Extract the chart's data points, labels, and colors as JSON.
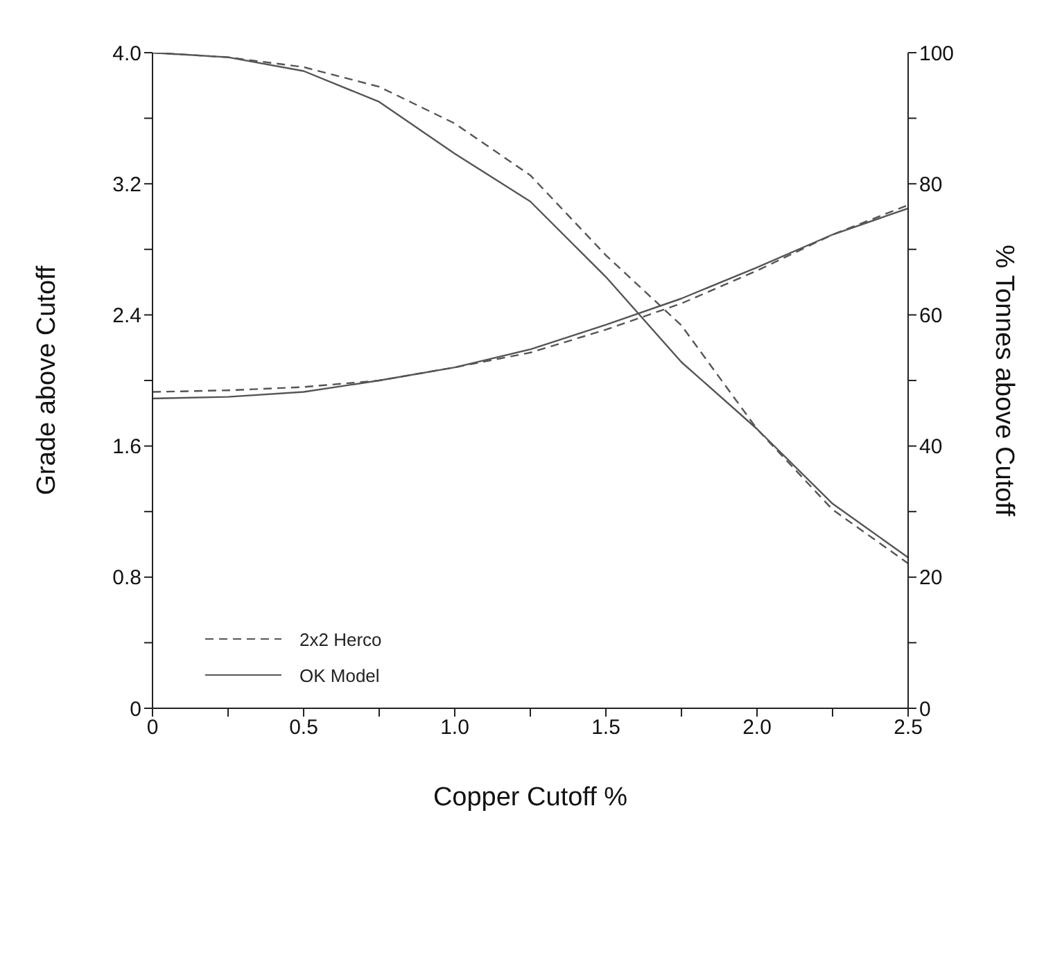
{
  "chart_data": {
    "type": "line",
    "xlabel": "Copper Cutoff %",
    "ylabel": "Grade above Cutoff",
    "y2label": "% Tonnes above Cutoff",
    "x": [
      0,
      0.25,
      0.5,
      0.75,
      1.0,
      1.25,
      1.5,
      1.75,
      2.0,
      2.25,
      2.5
    ],
    "series": [
      {
        "name": "2x2 Herco",
        "color": "#555555",
        "line_style": "dashed",
        "axis": "y2",
        "values": [
          100,
          99.3,
          97.8,
          94.8,
          89.2,
          81.3,
          69.1,
          58.4,
          42.6,
          30.3,
          22.1
        ]
      },
      {
        "name": "OK Model",
        "color": "#555555",
        "line_style": "solid",
        "axis": "y2",
        "values": [
          100,
          99.3,
          97.2,
          92.5,
          84.6,
          77.3,
          65.8,
          52.8,
          42.6,
          31.2,
          23.0
        ]
      },
      {
        "color": "#555555",
        "line_style": "dashed",
        "values": [
          1.93,
          1.94,
          1.96,
          2.0,
          2.08,
          2.17,
          2.31,
          2.47,
          2.67,
          2.89,
          3.07
        ]
      },
      {
        "color": "#555555",
        "line_style": "solid",
        "values": [
          1.89,
          1.9,
          1.93,
          2.0,
          2.08,
          2.19,
          2.34,
          2.5,
          2.69,
          2.89,
          3.05
        ]
      }
    ],
    "xlim": [
      0,
      2.5
    ],
    "xticks": [
      0,
      {
        "value": 0.25,
        "label": null
      },
      0.5,
      {
        "value": 0.75,
        "label": null
      },
      {
        "value": 1,
        "label": "1.0"
      },
      {
        "value": 1.25,
        "label": null
      },
      1.5,
      {
        "value": 1.75,
        "label": null
      },
      {
        "value": 2,
        "label": "2.0"
      },
      {
        "value": 2.25,
        "label": null
      },
      2.5
    ],
    "ylim": [
      0,
      4
    ],
    "yticks": [
      0,
      {
        "value": 0.4,
        "label": null
      },
      0.8,
      {
        "value": 1.2,
        "label": null
      },
      1.6,
      {
        "value": 2.0,
        "label": null
      },
      2.4,
      {
        "value": 2.8,
        "label": null
      },
      3.2,
      {
        "value": 3.6,
        "label": null
      },
      {
        "value": 4,
        "label": "4.0"
      }
    ],
    "y2lim": [
      0,
      100
    ],
    "y2ticks": [
      0,
      {
        "value": 10,
        "label": null
      },
      20,
      {
        "value": 30,
        "label": null
      },
      40,
      {
        "value": 50,
        "label": null
      },
      60,
      {
        "value": 70,
        "label": null
      },
      80,
      {
        "value": 90,
        "label": null
      },
      100
    ],
    "legend": "bottom left",
    "grid": false,
    "marker": "none"
  }
}
